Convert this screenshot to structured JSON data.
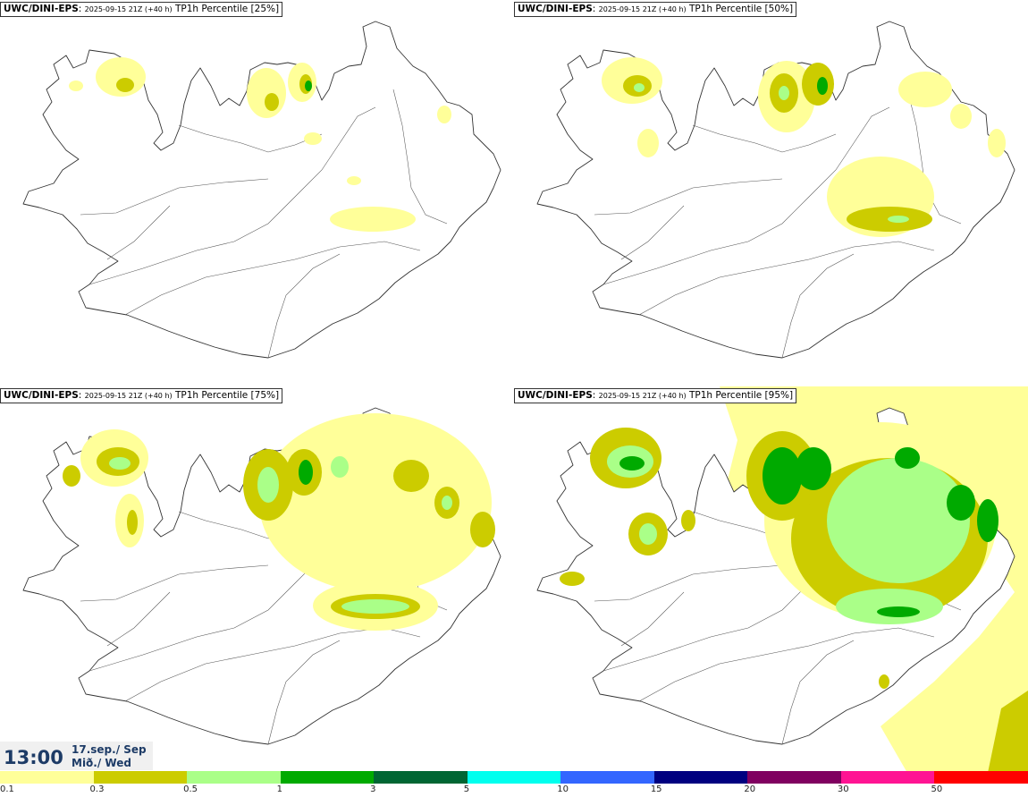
{
  "panels": [
    {
      "model": "UWC/DINI-EPS",
      "run": "2025-09-15 21Z (+40 h)",
      "product": "TP1h Percentile [25%]"
    },
    {
      "model": "UWC/DINI-EPS",
      "run": "2025-09-15 21Z (+40 h)",
      "product": "TP1h Percentile [50%]"
    },
    {
      "model": "UWC/DINI-EPS",
      "run": "2025-09-15 21Z (+40 h)",
      "product": "TP1h Percentile [75%]"
    },
    {
      "model": "UWC/DINI-EPS",
      "run": "2025-09-15 21Z (+40 h)",
      "product": "TP1h Percentile [95%]"
    }
  ],
  "valid_time": {
    "clock": "13:00",
    "date_line1": "17.sep./ Sep",
    "date_line2": "Mið./ Wed"
  },
  "colorbar": {
    "colors": [
      "#ffff99",
      "#cccc00",
      "#aaff88",
      "#00aa00",
      "#006633",
      "#00ffee",
      "#3366ff",
      "#000080",
      "#800060",
      "#ff1493",
      "#ff0000"
    ],
    "ticks": [
      "0.1",
      "0.3",
      "0.5",
      "1",
      "3",
      "5",
      "10",
      "15",
      "20",
      "30",
      "50"
    ]
  },
  "chart_data": {
    "type": "heatmap",
    "region": "Iceland",
    "variable": "TP1h",
    "percentiles": [
      25,
      50,
      75,
      95
    ],
    "levels": [
      0.1,
      0.3,
      0.5,
      1,
      3,
      5,
      10,
      15,
      20,
      30,
      50
    ]
  }
}
